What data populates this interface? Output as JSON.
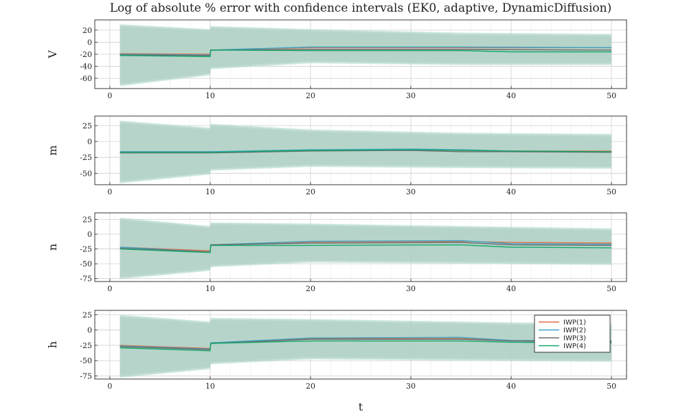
{
  "chart_data": {
    "type": "line",
    "title": "Log of absolute % error with confidence intervals (EK0, adaptive, DynamicDiffusion)",
    "xlabel": "t",
    "xlim": [
      -1.5,
      51.5
    ],
    "xticks": [
      0,
      10,
      20,
      30,
      40,
      50
    ],
    "grid": true,
    "legend_position": "inside bottom-right of last panel",
    "series_legend": [
      {
        "name": "IWP(1)",
        "color": "#e26f46"
      },
      {
        "name": "IWP(2)",
        "color": "#3da3c7"
      },
      {
        "name": "IWP(3)",
        "color": "#6b6b6b"
      },
      {
        "name": "IWP(4)",
        "color": "#16a86b"
      }
    ],
    "panels": [
      {
        "ylabel": "V",
        "ylim": [
          -77,
          37
        ],
        "yticks": [
          20,
          0,
          -20,
          -40,
          -60
        ],
        "band": {
          "t": [
            1,
            10,
            10.05,
            20,
            35,
            50
          ],
          "upper": [
            30,
            22,
            27,
            22,
            16,
            14
          ],
          "lower": [
            -73,
            -55,
            -45,
            -35,
            -38,
            -38
          ]
        },
        "series": [
          {
            "name": "IWP(1)",
            "t": [
              1,
              10,
              10.05,
              20,
              35,
              50
            ],
            "values": [
              -19,
              -20,
              -13,
              -9,
              -9,
              -9
            ]
          },
          {
            "name": "IWP(2)",
            "t": [
              1,
              10,
              10.05,
              20,
              35,
              50
            ],
            "values": [
              -20,
              -21,
              -13,
              -8,
              -8,
              -9
            ]
          },
          {
            "name": "IWP(3)",
            "t": [
              1,
              10,
              10.05,
              20,
              35,
              50
            ],
            "values": [
              -21,
              -22,
              -13,
              -12,
              -12,
              -13
            ]
          },
          {
            "name": "IWP(4)",
            "t": [
              1,
              10,
              10.05,
              20,
              35,
              40,
              50
            ],
            "values": [
              -22,
              -24,
              -13,
              -14,
              -14,
              -16,
              -16
            ]
          }
        ]
      },
      {
        "ylabel": "m",
        "ylim": [
          -68,
          40
        ],
        "yticks": [
          25,
          0,
          -25,
          -50
        ],
        "band": {
          "t": [
            1,
            10,
            10.05,
            20,
            35,
            50
          ],
          "upper": [
            33,
            22,
            28,
            19,
            14,
            12
          ],
          "lower": [
            -66,
            -52,
            -46,
            -40,
            -42,
            -43
          ]
        },
        "series": [
          {
            "name": "IWP(1)",
            "t": [
              1,
              10,
              20,
              30,
              35,
              40,
              50
            ],
            "values": [
              -16,
              -16,
              -14,
              -13,
              -14,
              -15,
              -15
            ]
          },
          {
            "name": "IWP(2)",
            "t": [
              1,
              10,
              20,
              30,
              35,
              40,
              50
            ],
            "values": [
              -16,
              -16,
              -13,
              -12,
              -13,
              -15,
              -16
            ]
          },
          {
            "name": "IWP(3)",
            "t": [
              1,
              10,
              20,
              30,
              35,
              40,
              50
            ],
            "values": [
              -18,
              -18,
              -15,
              -14,
              -16,
              -16,
              -17
            ]
          },
          {
            "name": "IWP(4)",
            "t": [
              1,
              10,
              20,
              30,
              35,
              40,
              50
            ],
            "values": [
              -17,
              -17,
              -14,
              -13,
              -14,
              -15,
              -16
            ]
          }
        ]
      },
      {
        "ylabel": "n",
        "ylim": [
          -80,
          36
        ],
        "yticks": [
          25,
          0,
          -25,
          -50,
          -75
        ],
        "band": {
          "t": [
            1,
            10,
            10.05,
            20,
            35,
            50
          ],
          "upper": [
            28,
            14,
            20,
            18,
            14,
            10
          ],
          "lower": [
            -76,
            -62,
            -56,
            -48,
            -50,
            -52
          ]
        },
        "series": [
          {
            "name": "IWP(1)",
            "t": [
              1,
              10,
              10.05,
              20,
              35,
              40,
              50
            ],
            "values": [
              -22,
              -28,
              -18,
              -13,
              -12,
              -14,
              -15
            ]
          },
          {
            "name": "IWP(2)",
            "t": [
              1,
              10,
              10.05,
              20,
              35,
              40,
              50
            ],
            "values": [
              -22,
              -30,
              -18,
              -12,
              -11,
              -16,
              -17
            ]
          },
          {
            "name": "IWP(3)",
            "t": [
              1,
              10,
              10.05,
              20,
              35,
              40,
              50
            ],
            "values": [
              -24,
              -30,
              -18,
              -15,
              -14,
              -18,
              -19
            ]
          },
          {
            "name": "IWP(4)",
            "t": [
              1,
              10,
              10.05,
              20,
              35,
              40,
              50
            ],
            "values": [
              -25,
              -31,
              -19,
              -19,
              -18,
              -22,
              -23
            ]
          }
        ]
      },
      {
        "ylabel": "h",
        "ylim": [
          -80,
          32
        ],
        "yticks": [
          25,
          0,
          -25,
          -50,
          -75
        ],
        "band": {
          "t": [
            1,
            10,
            10.05,
            20,
            35,
            50
          ],
          "upper": [
            25,
            14,
            20,
            18,
            14,
            10
          ],
          "lower": [
            -78,
            -64,
            -56,
            -48,
            -50,
            -52
          ]
        },
        "series": [
          {
            "name": "IWP(1)",
            "t": [
              1,
              10,
              10.05,
              20,
              35,
              40,
              50
            ],
            "values": [
              -25,
              -30,
              -21,
              -14,
              -14,
              -17,
              -18
            ]
          },
          {
            "name": "IWP(2)",
            "t": [
              1,
              10,
              10.05,
              20,
              35,
              40,
              50
            ],
            "values": [
              -26,
              -31,
              -21,
              -13,
              -12,
              -17,
              -18
            ]
          },
          {
            "name": "IWP(3)",
            "t": [
              1,
              10,
              10.05,
              20,
              35,
              40,
              50
            ],
            "values": [
              -27,
              -32,
              -22,
              -15,
              -15,
              -18,
              -19
            ]
          },
          {
            "name": "IWP(4)",
            "t": [
              1,
              10,
              10.05,
              20,
              35,
              40,
              50
            ],
            "values": [
              -29,
              -34,
              -22,
              -18,
              -18,
              -20,
              -21
            ]
          }
        ]
      }
    ]
  }
}
